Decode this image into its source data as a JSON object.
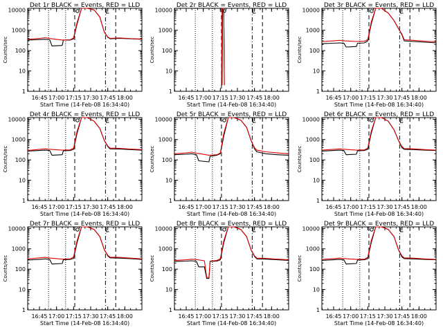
{
  "figure": {
    "x_axis_label": "Start Time (14-Feb-08 16:34:40)",
    "y_axis_label": "Counts/sec",
    "y_tick_labels": [
      "1",
      "10",
      "100",
      "1000",
      "10000"
    ],
    "colors": {
      "events": "#000000",
      "lld": "#e00000",
      "axes": "#000000"
    }
  },
  "chart_data": [
    {
      "type": "line",
      "title": "Det 1r BLACK = Events, RED = LLD",
      "x_ticks": [
        "16:45",
        "17:00",
        "17:15",
        "17:30",
        "17:45",
        "18:00"
      ],
      "xlim": [
        "16:34:40",
        "18:15:00"
      ],
      "ylim": [
        1,
        12000
      ],
      "yscale": "log",
      "markers": {
        "dotted": [
          "16:53",
          "17:08"
        ],
        "dashed": [
          "17:16",
          "17:52"
        ],
        "dashdot": [
          "17:43"
        ]
      },
      "series": [
        {
          "color": "black",
          "x": [
            "16:34:40",
            "16:45",
            "16:50",
            "16:54",
            "16:56",
            "17:05",
            "17:06",
            "17:12",
            "17:15",
            "17:18",
            "17:22",
            "17:27",
            "17:33",
            "17:38",
            "17:42",
            "17:45",
            "17:47",
            "17:55",
            "18:05",
            "18:15"
          ],
          "y": [
            330,
            350,
            360,
            340,
            170,
            180,
            330,
            330,
            380,
            2000,
            12000,
            12000,
            10000,
            4500,
            800,
            450,
            380,
            400,
            380,
            360
          ]
        },
        {
          "color": "red",
          "x": [
            "16:34:40",
            "16:45",
            "16:50",
            "16:55",
            "17:05",
            "17:12",
            "17:15",
            "17:18",
            "17:22",
            "17:27",
            "17:33",
            "17:38",
            "17:42",
            "17:45",
            "17:47",
            "17:55",
            "18:05",
            "18:15"
          ],
          "y": [
            360,
            400,
            430,
            390,
            330,
            340,
            420,
            2400,
            12000,
            12000,
            10000,
            4500,
            800,
            470,
            400,
            420,
            390,
            370
          ]
        }
      ]
    },
    {
      "type": "line",
      "title": "Det 2r BLACK = Events, RED = LLD",
      "x_ticks": [
        "16:45",
        "17:00",
        "17:15",
        "17:30",
        "17:45",
        "18:00"
      ],
      "xlim": [
        "16:34:40",
        "18:15:00"
      ],
      "ylim": [
        1,
        12000
      ],
      "yscale": "log",
      "markers": {
        "dotted": [
          "16:53",
          "17:08"
        ],
        "dashed": [
          "17:16",
          "17:52"
        ],
        "dashdot": [
          "17:43"
        ]
      },
      "series": [
        {
          "color": "black",
          "x": [
            "17:16:30",
            "17:17:00",
            "17:17:30",
            "17:18:00",
            "17:18:30"
          ],
          "y": [
            2,
            12000,
            12000,
            12000,
            2
          ]
        },
        {
          "color": "red",
          "x": [
            "17:15:30",
            "17:16:00",
            "17:16:30",
            "17:17:00",
            "17:17:30",
            "17:18:00",
            "17:18:30"
          ],
          "y": [
            2,
            2,
            12000,
            12000,
            12000,
            12000,
            2
          ]
        }
      ]
    },
    {
      "type": "line",
      "title": "Det 3r BLACK = Events, RED = LLD",
      "x_ticks": [
        "16:45",
        "17:00",
        "17:15",
        "17:30",
        "17:45",
        "18:00"
      ],
      "xlim": [
        "16:34:40",
        "18:15:00"
      ],
      "ylim": [
        1,
        12000
      ],
      "yscale": "log",
      "markers": {
        "dotted": [
          "16:53",
          "17:08"
        ],
        "dashed": [
          "17:16",
          "17:52"
        ],
        "dashdot": [
          "17:43"
        ]
      },
      "series": [
        {
          "color": "black",
          "x": [
            "16:34:40",
            "16:45",
            "16:50",
            "16:54",
            "16:56",
            "17:05",
            "17:06",
            "17:12",
            "17:15",
            "17:18",
            "17:22",
            "17:27",
            "17:33",
            "17:38",
            "17:42",
            "17:45",
            "17:47",
            "17:55",
            "18:05",
            "18:15"
          ],
          "y": [
            220,
            230,
            240,
            230,
            150,
            160,
            230,
            240,
            300,
            2000,
            12000,
            12000,
            7000,
            3000,
            1200,
            600,
            300,
            280,
            260,
            240
          ]
        },
        {
          "color": "red",
          "x": [
            "16:34:40",
            "16:45",
            "16:50",
            "16:55",
            "17:05",
            "17:12",
            "17:15",
            "17:18",
            "17:22",
            "17:27",
            "17:33",
            "17:38",
            "17:42",
            "17:45",
            "17:47",
            "17:55",
            "18:05",
            "18:15"
          ],
          "y": [
            280,
            300,
            320,
            300,
            280,
            290,
            350,
            2500,
            12000,
            12000,
            7000,
            3000,
            1200,
            650,
            340,
            320,
            290,
            270
          ]
        }
      ]
    },
    {
      "type": "line",
      "title": "Det 4r BLACK = Events, RED = LLD",
      "x_ticks": [
        "16:45",
        "17:00",
        "17:15",
        "17:30",
        "17:45",
        "18:00"
      ],
      "xlim": [
        "16:34:40",
        "18:15:00"
      ],
      "ylim": [
        1,
        12000
      ],
      "yscale": "log",
      "markers": {
        "dotted": [
          "16:53",
          "17:08"
        ],
        "dashed": [
          "17:16",
          "17:52"
        ],
        "dashdot": [
          "17:43"
        ]
      },
      "series": [
        {
          "color": "black",
          "x": [
            "16:34:40",
            "16:45",
            "16:50",
            "16:54",
            "16:56",
            "17:05",
            "17:06",
            "17:12",
            "17:15",
            "17:18",
            "17:22",
            "17:27",
            "17:33",
            "17:38",
            "17:42",
            "17:45",
            "17:47",
            "17:55",
            "18:05",
            "18:15"
          ],
          "y": [
            270,
            290,
            300,
            290,
            170,
            180,
            280,
            290,
            330,
            2000,
            12000,
            12000,
            8000,
            3500,
            900,
            450,
            350,
            340,
            320,
            300
          ]
        },
        {
          "color": "red",
          "x": [
            "16:34:40",
            "16:45",
            "16:50",
            "16:55",
            "17:05",
            "17:12",
            "17:15",
            "17:18",
            "17:22",
            "17:27",
            "17:33",
            "17:38",
            "17:42",
            "17:45",
            "17:47",
            "17:55",
            "18:05",
            "18:15"
          ],
          "y": [
            290,
            330,
            350,
            330,
            300,
            310,
            380,
            2500,
            12000,
            12000,
            8000,
            3500,
            900,
            480,
            380,
            370,
            340,
            320
          ]
        }
      ]
    },
    {
      "type": "line",
      "title": "Det 5r BLACK = Events, RED = LLD",
      "x_ticks": [
        "16:45",
        "17:00",
        "17:15",
        "17:30",
        "17:45",
        "18:00"
      ],
      "xlim": [
        "16:34:40",
        "18:15:00"
      ],
      "ylim": [
        1,
        12000
      ],
      "yscale": "log",
      "markers": {
        "dotted": [
          "16:53",
          "17:08"
        ],
        "dashed": [
          "17:16",
          "17:52"
        ],
        "dashdot": [
          "17:43"
        ]
      },
      "series": [
        {
          "color": "black",
          "x": [
            "16:34:40",
            "16:45",
            "16:50",
            "16:54",
            "16:56",
            "17:05",
            "17:06",
            "17:12",
            "17:15",
            "17:18",
            "17:22",
            "17:27",
            "17:33",
            "17:38",
            "17:42",
            "17:45",
            "17:47",
            "17:55",
            "18:05",
            "18:15"
          ],
          "y": [
            180,
            190,
            200,
            180,
            90,
            80,
            150,
            170,
            200,
            1500,
            12000,
            12000,
            9000,
            4000,
            900,
            350,
            250,
            200,
            180,
            170
          ]
        },
        {
          "color": "red",
          "x": [
            "16:34:40",
            "16:45",
            "16:50",
            "16:55",
            "17:05",
            "17:12",
            "17:15",
            "17:18",
            "17:22",
            "17:27",
            "17:33",
            "17:38",
            "17:42",
            "17:45",
            "17:47",
            "17:55",
            "18:05",
            "18:15"
          ],
          "y": [
            200,
            220,
            240,
            210,
            170,
            180,
            220,
            2000,
            12000,
            12000,
            9000,
            4000,
            900,
            400,
            300,
            250,
            220,
            200
          ]
        }
      ]
    },
    {
      "type": "line",
      "title": "Det 6r BLACK = Events, RED = LLD",
      "x_ticks": [
        "16:45",
        "17:00",
        "17:15",
        "17:30",
        "17:45",
        "18:00"
      ],
      "xlim": [
        "16:34:40",
        "18:15:00"
      ],
      "ylim": [
        1,
        12000
      ],
      "yscale": "log",
      "markers": {
        "dotted": [
          "16:53",
          "17:08"
        ],
        "dashed": [
          "17:16",
          "17:52"
        ],
        "dashdot": [
          "17:43"
        ]
      },
      "series": [
        {
          "color": "black",
          "x": [
            "16:34:40",
            "16:45",
            "16:50",
            "16:54",
            "16:56",
            "17:05",
            "17:06",
            "17:12",
            "17:15",
            "17:18",
            "17:22",
            "17:27",
            "17:33",
            "17:38",
            "17:42",
            "17:45",
            "17:47",
            "17:55",
            "18:05",
            "18:15"
          ],
          "y": [
            270,
            290,
            300,
            290,
            180,
            190,
            280,
            290,
            330,
            2000,
            12000,
            12000,
            8000,
            3000,
            900,
            400,
            330,
            320,
            300,
            290
          ]
        },
        {
          "color": "red",
          "x": [
            "16:34:40",
            "16:45",
            "16:50",
            "16:55",
            "17:05",
            "17:12",
            "17:15",
            "17:18",
            "17:22",
            "17:27",
            "17:33",
            "17:38",
            "17:42",
            "17:45",
            "17:47",
            "17:55",
            "18:05",
            "18:15"
          ],
          "y": [
            300,
            330,
            350,
            330,
            300,
            310,
            380,
            2500,
            12000,
            12000,
            8000,
            3000,
            900,
            450,
            360,
            350,
            320,
            300
          ]
        }
      ]
    },
    {
      "type": "line",
      "title": "Det 7r BLACK = Events, RED = LLD",
      "x_ticks": [
        "16:45",
        "17:00",
        "17:15",
        "17:30",
        "17:45",
        "18:00"
      ],
      "xlim": [
        "16:34:40",
        "18:15:00"
      ],
      "ylim": [
        1,
        12000
      ],
      "yscale": "log",
      "markers": {
        "dotted": [
          "16:53",
          "17:08"
        ],
        "dashed": [
          "17:16",
          "17:52"
        ],
        "dashdot": [
          "17:43"
        ]
      },
      "series": [
        {
          "color": "black",
          "x": [
            "16:34:40",
            "16:45",
            "16:50",
            "16:54",
            "16:56",
            "17:05",
            "17:06",
            "17:12",
            "17:15",
            "17:18",
            "17:22",
            "17:27",
            "17:33",
            "17:38",
            "17:42",
            "17:45",
            "17:47",
            "17:55",
            "18:05",
            "18:15"
          ],
          "y": [
            280,
            300,
            320,
            300,
            180,
            190,
            290,
            300,
            340,
            2000,
            12000,
            12000,
            9000,
            4000,
            900,
            450,
            360,
            350,
            330,
            300
          ]
        },
        {
          "color": "red",
          "x": [
            "16:34:40",
            "16:45",
            "16:50",
            "16:55",
            "17:05",
            "17:12",
            "17:15",
            "17:18",
            "17:22",
            "17:27",
            "17:33",
            "17:38",
            "17:42",
            "17:45",
            "17:47",
            "17:55",
            "18:05",
            "18:15"
          ],
          "y": [
            320,
            360,
            380,
            350,
            310,
            320,
            400,
            2500,
            12000,
            12000,
            9000,
            4000,
            900,
            480,
            390,
            380,
            350,
            320
          ]
        }
      ]
    },
    {
      "type": "line",
      "title": "Det 8r BLACK = Events, RED = LLD",
      "x_ticks": [
        "16:45",
        "17:00",
        "17:15",
        "17:30",
        "17:45",
        "18:00"
      ],
      "xlim": [
        "16:34:40",
        "18:15:00"
      ],
      "ylim": [
        1,
        12000
      ],
      "yscale": "log",
      "markers": {
        "dotted": [
          "16:53",
          "17:08"
        ],
        "dashed": [
          "17:16",
          "17:52"
        ],
        "dashdot": [
          "17:43"
        ]
      },
      "series": [
        {
          "color": "black",
          "x": [
            "16:34:40",
            "16:45",
            "16:50",
            "16:54",
            "16:56",
            "17:01",
            "17:03",
            "17:05",
            "17:06",
            "17:12",
            "17:15",
            "17:18",
            "17:22",
            "17:27",
            "17:33",
            "17:38",
            "17:42",
            "17:45",
            "17:47",
            "17:55",
            "18:05",
            "18:15"
          ],
          "y": [
            240,
            250,
            260,
            240,
            130,
            130,
            35,
            35,
            240,
            250,
            290,
            2000,
            12000,
            12000,
            9000,
            4000,
            900,
            420,
            320,
            310,
            290,
            270
          ]
        },
        {
          "color": "red",
          "x": [
            "16:34:40",
            "16:45",
            "16:50",
            "16:55",
            "17:01",
            "17:03",
            "17:05",
            "17:06",
            "17:12",
            "17:15",
            "17:18",
            "17:22",
            "17:27",
            "17:33",
            "17:38",
            "17:42",
            "17:45",
            "17:47",
            "17:55",
            "18:05",
            "18:15"
          ],
          "y": [
            270,
            290,
            310,
            290,
            260,
            40,
            40,
            250,
            270,
            330,
            2500,
            12000,
            12000,
            9000,
            4000,
            900,
            450,
            350,
            340,
            310,
            290
          ]
        }
      ]
    },
    {
      "type": "line",
      "title": "Det 9r BLACK = Events, RED = LLD",
      "x_ticks": [
        "16:45",
        "17:00",
        "17:15",
        "17:30",
        "17:45",
        "18:00"
      ],
      "xlim": [
        "16:34:40",
        "18:15:00"
      ],
      "ylim": [
        1,
        12000
      ],
      "yscale": "log",
      "markers": {
        "dotted": [
          "16:53",
          "17:08"
        ],
        "dashed": [
          "17:16",
          "17:52"
        ],
        "dashdot": [
          "17:43"
        ]
      },
      "series": [
        {
          "color": "black",
          "x": [
            "16:34:40",
            "16:45",
            "16:50",
            "16:54",
            "16:56",
            "17:05",
            "17:06",
            "17:12",
            "17:15",
            "17:18",
            "17:22",
            "17:27",
            "17:33",
            "17:38",
            "17:42",
            "17:45",
            "17:47",
            "17:55",
            "18:05",
            "18:15"
          ],
          "y": [
            270,
            290,
            300,
            290,
            180,
            190,
            280,
            290,
            330,
            2000,
            12000,
            12000,
            9000,
            4000,
            900,
            400,
            330,
            320,
            300,
            290
          ]
        },
        {
          "color": "red",
          "x": [
            "16:34:40",
            "16:45",
            "16:50",
            "16:55",
            "17:05",
            "17:12",
            "17:15",
            "17:18",
            "17:22",
            "17:27",
            "17:33",
            "17:38",
            "17:42",
            "17:45",
            "17:47",
            "17:55",
            "18:05",
            "18:15"
          ],
          "y": [
            300,
            330,
            350,
            330,
            300,
            310,
            380,
            2500,
            12000,
            12000,
            9000,
            4000,
            900,
            450,
            360,
            350,
            320,
            300
          ]
        }
      ]
    }
  ]
}
